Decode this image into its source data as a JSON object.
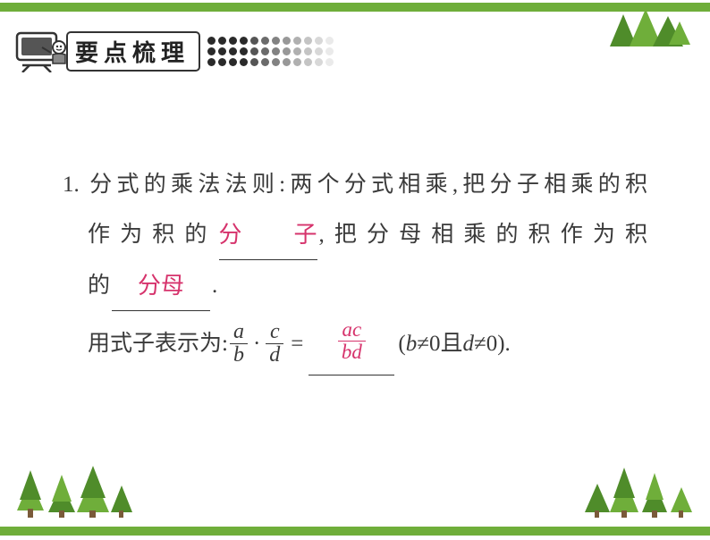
{
  "theme": {
    "accent": "#6fae3a",
    "accent_dark": "#4f8c2a",
    "text_color": "#3a3a3a",
    "answer_color": "#d6336c",
    "background": "#ffffff",
    "border_height": 10
  },
  "header": {
    "title": "要点梳理",
    "icon_desc": "teacher-blackboard-icon",
    "dot_rows": 3,
    "dot_cols": 12,
    "dot_shades": [
      "#2a2a2a",
      "#2a2a2a",
      "#2a2a2a",
      "#2a2a2a",
      "#555555",
      "#6b6b6b",
      "#828282",
      "#989898",
      "#b0b0b0",
      "#c4c4c4",
      "#d8d8d8",
      "#eaeaea"
    ]
  },
  "content": {
    "item_number": "1.",
    "line1": "分式的乘法法则:两个分式相乘,把分子相乘的积",
    "line2_prefix": "作为积的",
    "blank1_answer": "分子",
    "line2_suffix": ",把分母相乘的积作为积",
    "line3_prefix": "的",
    "blank2_answer": "分母",
    "line3_suffix": ".",
    "formula_prefix": "用式子表示为:",
    "frac1": {
      "num": "a",
      "den": "b"
    },
    "dot_op": "·",
    "frac2": {
      "num": "c",
      "den": "d"
    },
    "equals": "=",
    "blank3_answer": {
      "num": "ac",
      "den": "bd"
    },
    "formula_suffix_open": "(",
    "cond1_var": "b",
    "neq": "≠0",
    "cond_and": " 且 ",
    "cond2_var": "d",
    "formula_suffix_close": ").",
    "font_size_body": 25,
    "line_height": 2.15
  },
  "decorations": {
    "top_triangles": true,
    "bottom_trees": true
  }
}
